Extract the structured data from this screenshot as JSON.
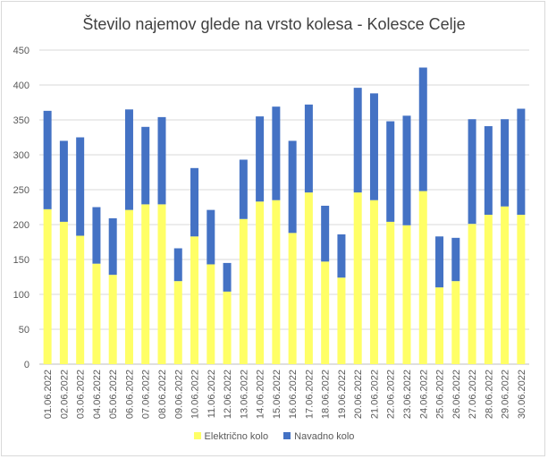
{
  "colors": {
    "elektricno": "#ffff66",
    "navadno": "#4472c4",
    "grid": "#d9d9d9",
    "axis_text": "#595959"
  },
  "chart_data": {
    "type": "bar",
    "stacked": true,
    "title": "Število najemov glede na vrsto kolesa - Kolesce Celje",
    "xlabel": "",
    "ylabel": "",
    "ylim": [
      0,
      450
    ],
    "yticks": [
      0,
      50,
      100,
      150,
      200,
      250,
      300,
      350,
      400,
      450
    ],
    "grid": true,
    "legend_position": "bottom",
    "categories": [
      "01.06.2022",
      "02.06.2022",
      "03.06.2022",
      "04.06.2022",
      "05.06.2022",
      "06.06.2022",
      "07.06.2022",
      "08.06.2022",
      "09.06.2022",
      "10.06.2022",
      "11.06.2022",
      "12.06.2022",
      "13.06.2022",
      "14.06.2022",
      "15.06.2022",
      "16.06.2022",
      "17.06.2022",
      "18.06.2022",
      "19.06.2022",
      "20.06.2022",
      "21.06.2022",
      "22.06.2022",
      "23.06.2022",
      "24.06.2022",
      "25.06.2022",
      "26.06.2022",
      "27.06.2022",
      "28.06.2022",
      "29.06.2022",
      "30.06.2022"
    ],
    "series": [
      {
        "name": "Električno kolo",
        "color": "#ffff66",
        "values": [
          222,
          204,
          184,
          144,
          128,
          221,
          229,
          229,
          119,
          183,
          143,
          104,
          208,
          233,
          235,
          188,
          246,
          147,
          124,
          246,
          235,
          204,
          199,
          248,
          110,
          119,
          201,
          214,
          226,
          214
        ]
      },
      {
        "name": "Navadno kolo",
        "color": "#4472c4",
        "values": [
          141,
          116,
          141,
          81,
          81,
          144,
          111,
          125,
          47,
          98,
          78,
          41,
          85,
          122,
          134,
          132,
          126,
          80,
          62,
          150,
          153,
          144,
          157,
          177,
          73,
          62,
          150,
          127,
          125,
          152
        ]
      }
    ]
  }
}
